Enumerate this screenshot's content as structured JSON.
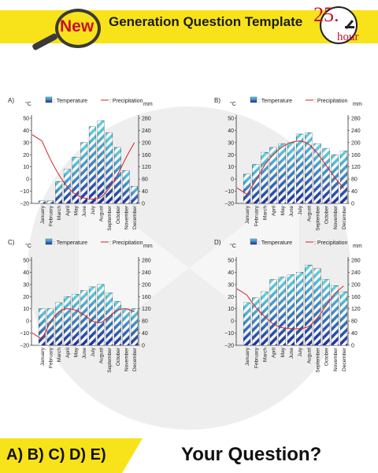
{
  "header": {
    "logo_text": "New",
    "title": "Generation Question Template",
    "clock_number": "25.",
    "clock_unit": "hour"
  },
  "footer": {
    "answers": "A) B) C) D) E)",
    "question": "Your Question?"
  },
  "colors": {
    "banner": "#f8e21a",
    "bar_dark": "#1c2f9c",
    "bar_light": "#5ed6e4",
    "precip_line": "#d0202a"
  },
  "legend": {
    "temperature": ": Temperature",
    "precipitation": ": Precipitation"
  },
  "chart_data": [
    {
      "type": "bar",
      "label": "A)",
      "ylabel": "°C",
      "y2label": "mm",
      "categories": [
        "January",
        "February",
        "March",
        "April",
        "May",
        "June",
        "July",
        "August",
        "September",
        "October",
        "November",
        "December"
      ],
      "temperature": [
        -18,
        -18,
        -2,
        8,
        18,
        30,
        43,
        48,
        38,
        26,
        7,
        -6
      ],
      "precipitation": [
        205,
        145,
        95,
        55,
        30,
        18,
        14,
        20,
        50,
        95,
        150,
        200
      ],
      "ylim": [
        -20,
        50
      ],
      "y2lim": [
        0,
        280
      ],
      "yticks": [
        50,
        40,
        30,
        20,
        10,
        0,
        -10,
        -20
      ],
      "y2ticks": [
        280,
        240,
        200,
        160,
        120,
        80,
        40,
        0
      ]
    },
    {
      "type": "bar",
      "label": "B)",
      "ylabel": "°C",
      "y2label": "mm",
      "categories": [
        "January",
        "February",
        "March",
        "April",
        "May",
        "June",
        "July",
        "August",
        "September",
        "October",
        "November",
        "December"
      ],
      "temperature": [
        4,
        12,
        22,
        26,
        29,
        30,
        37,
        38,
        29,
        25,
        20,
        23
      ],
      "precipitation": [
        30,
        75,
        125,
        160,
        185,
        200,
        205,
        195,
        165,
        125,
        85,
        50
      ],
      "ylim": [
        -20,
        50
      ],
      "y2lim": [
        0,
        280
      ],
      "yticks": [
        50,
        40,
        30,
        20,
        10,
        0,
        -10,
        -20
      ],
      "y2ticks": [
        280,
        240,
        200,
        160,
        120,
        80,
        40,
        0
      ]
    },
    {
      "type": "bar",
      "label": "C)",
      "ylabel": "°C",
      "y2label": "mm",
      "categories": [
        "January",
        "February",
        "March",
        "April",
        "May",
        "June",
        "July",
        "August",
        "September",
        "October",
        "November",
        "December"
      ],
      "temperature": [
        10,
        10,
        15,
        20,
        22,
        25,
        28,
        30,
        23,
        16,
        10,
        10
      ],
      "precipitation": [
        20,
        75,
        110,
        120,
        115,
        100,
        80,
        75,
        95,
        115,
        120,
        110
      ],
      "ylim": [
        -20,
        50
      ],
      "y2lim": [
        0,
        280
      ],
      "yticks": [
        50,
        40,
        30,
        20,
        10,
        0,
        -10,
        -20
      ],
      "y2ticks": [
        280,
        240,
        200,
        160,
        120,
        80,
        40,
        0
      ]
    },
    {
      "type": "bar",
      "label": "D)",
      "ylabel": "°C",
      "y2label": "mm",
      "categories": [
        "January",
        "February",
        "March",
        "April",
        "May",
        "June",
        "July",
        "August",
        "September",
        "October",
        "November",
        "December"
      ],
      "temperature": [
        15,
        19,
        24,
        34,
        36,
        38,
        40,
        46,
        43,
        34,
        29,
        24
      ],
      "precipitation": [
        165,
        125,
        95,
        70,
        58,
        55,
        55,
        62,
        90,
        130,
        170,
        195
      ],
      "ylim": [
        -20,
        50
      ],
      "y2lim": [
        0,
        280
      ],
      "yticks": [
        50,
        40,
        30,
        20,
        10,
        0,
        -10,
        -20
      ],
      "y2ticks": [
        280,
        240,
        200,
        160,
        120,
        80,
        40,
        0
      ]
    }
  ]
}
